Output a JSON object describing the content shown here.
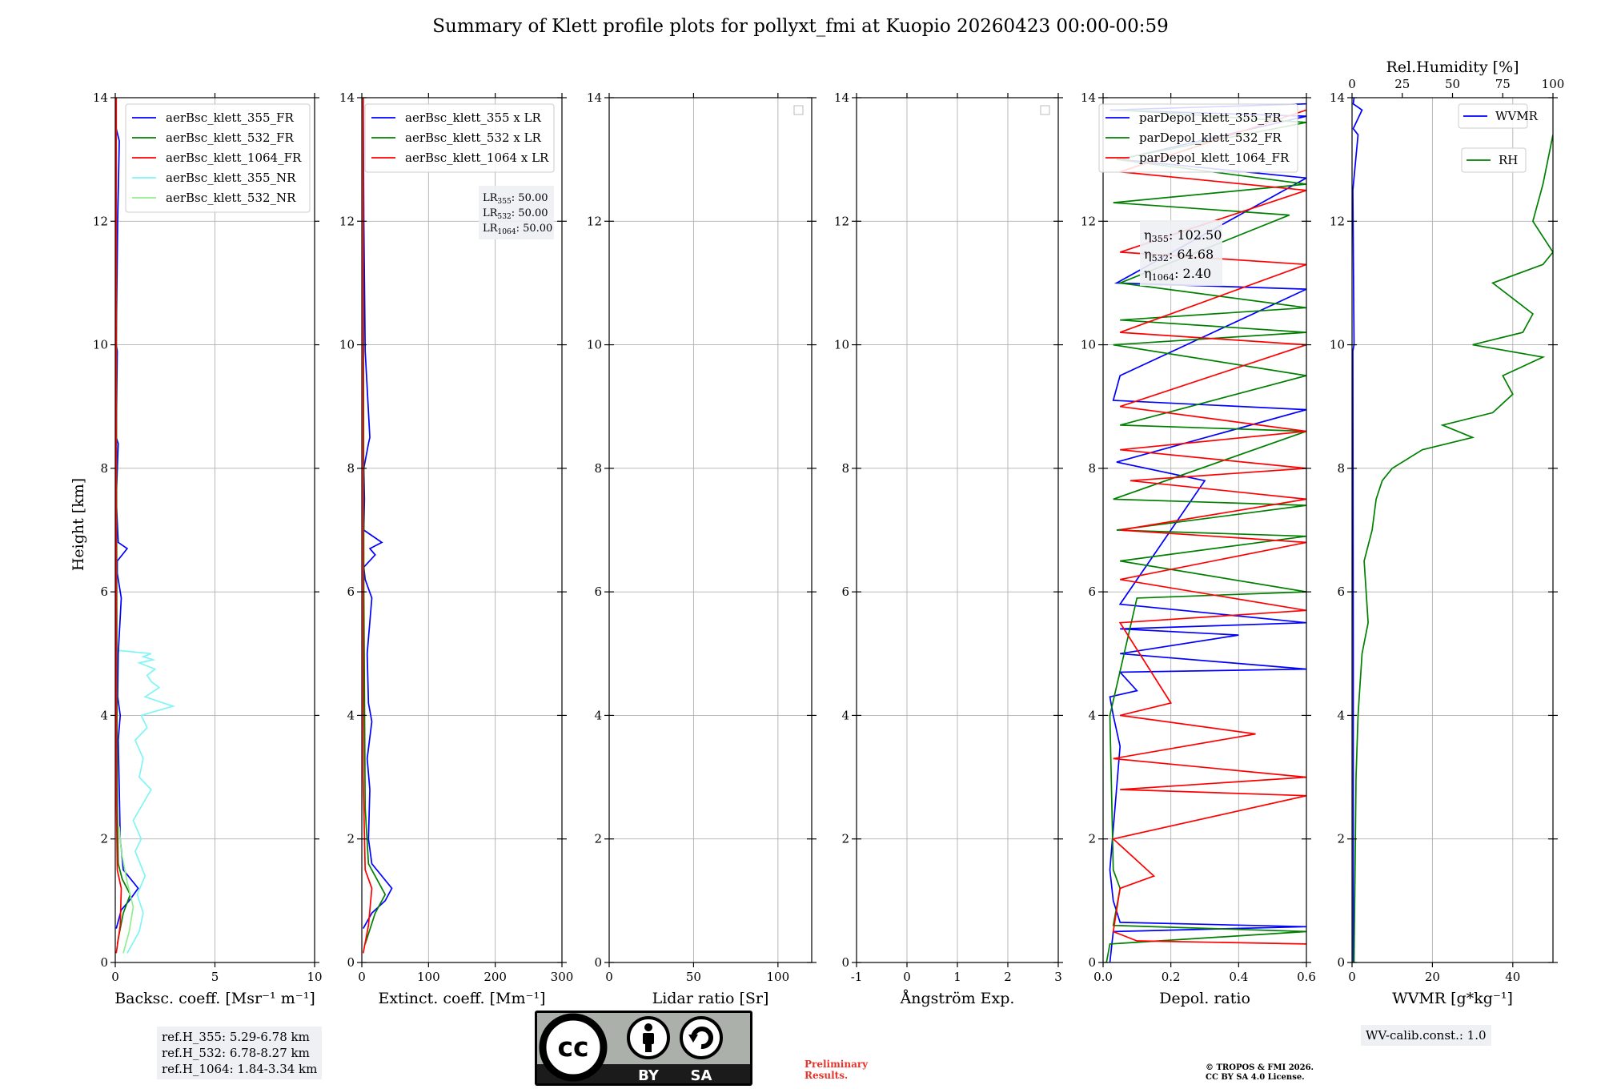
{
  "title": "Summary of Klett profile plots for pollyxt_fmi at Kuopio 20260423 00:00-00:59",
  "ylabel": "Height [km]",
  "ylim": [
    0,
    14
  ],
  "yticks": [
    0,
    2,
    4,
    6,
    8,
    10,
    12,
    14
  ],
  "ref_heights": [
    "ref.H_355: 5.29-6.78 km",
    "ref.H_532: 6.78-8.27 km",
    "ref.H_1064: 1.84-3.34 km"
  ],
  "wv_calib": "WV-calib.const.: 1.0",
  "preliminary": [
    "Preliminary",
    "Results."
  ],
  "copyright": [
    "© TROPOS & FMI 2026.",
    "CC BY SA 4.0 License."
  ],
  "license_badge": {
    "labels": [
      "BY",
      "SA"
    ],
    "icons": [
      "cc-icon",
      "person-icon",
      "share-alike-icon"
    ]
  },
  "colors": {
    "blue": "#0000ff",
    "green": "#008000",
    "red": "#ff0000",
    "cyan": "#7ff5f5",
    "lightgreen": "#90ee90",
    "box": "#eef0f4"
  },
  "chart_data": [
    {
      "type": "line",
      "xlabel": "Backsc. coeff. [Msr⁻¹ m⁻¹]",
      "xlim": [
        0,
        10
      ],
      "xticks": [
        0,
        5,
        10
      ],
      "legend": [
        "aerBsc_klett_355_FR",
        "aerBsc_klett_532_FR",
        "aerBsc_klett_1064_FR",
        "aerBsc_klett_355_NR",
        "aerBsc_klett_532_NR"
      ],
      "series": [
        {
          "name": "aerBsc_klett_355_FR",
          "color": "blue",
          "x": [
            0.05,
            0.3,
            0.7,
            1.15,
            0.4,
            0.25,
            0.2,
            0.15,
            0.25,
            0.12,
            0.15,
            0.3,
            0.1,
            0.1,
            0.35,
            0.6,
            0.15,
            0.05,
            0.15,
            0.05,
            0.1,
            0.05,
            0.12,
            0.2,
            0.05,
            0.05
          ],
          "y": [
            0.55,
            0.85,
            1.0,
            1.2,
            1.5,
            2.0,
            2.8,
            3.6,
            4.0,
            4.3,
            5.0,
            5.9,
            6.3,
            6.5,
            6.6,
            6.7,
            6.8,
            7.5,
            8.4,
            8.5,
            9.9,
            10.0,
            12.0,
            13.3,
            13.5,
            14.0
          ]
        },
        {
          "name": "aerBsc_klett_532_FR",
          "color": "green",
          "x": [
            0.1,
            0.4,
            0.75,
            0.35,
            0.15,
            0.1,
            0.08,
            0.06,
            0.05
          ],
          "y": [
            0.3,
            0.8,
            1.1,
            1.35,
            1.6,
            2.5,
            5.0,
            9.0,
            14.0
          ]
        },
        {
          "name": "aerBsc_klett_1064_FR",
          "color": "red",
          "x": [
            0.05,
            0.25,
            0.3,
            0.1,
            0.06,
            0.05,
            0.05
          ],
          "y": [
            0.15,
            0.6,
            1.2,
            1.5,
            2.5,
            8.0,
            14.0
          ]
        },
        {
          "name": "aerBsc_klett_355_NR",
          "color": "cyan",
          "x": [
            0.6,
            1.2,
            1.4,
            1.1,
            1.5,
            1.0,
            1.3,
            0.9,
            1.8,
            1.2,
            1.4,
            1.0,
            1.6,
            1.3,
            2.9,
            1.5,
            2.2,
            1.8,
            1.6,
            2.0,
            1.2,
            1.9,
            1.4,
            1.8,
            0.2
          ],
          "y": [
            0.15,
            0.5,
            0.8,
            1.1,
            1.4,
            1.8,
            2.0,
            2.3,
            2.8,
            3.0,
            3.3,
            3.6,
            3.8,
            4.0,
            4.15,
            4.3,
            4.45,
            4.55,
            4.65,
            4.75,
            4.85,
            4.9,
            4.95,
            5.0,
            5.05
          ]
        },
        {
          "name": "aerBsc_klett_532_NR",
          "color": "lightgreen",
          "x": [
            0.4,
            0.7,
            0.9,
            0.6,
            0.3,
            0.2
          ],
          "y": [
            0.15,
            0.5,
            0.9,
            1.3,
            1.8,
            2.2
          ]
        }
      ]
    },
    {
      "type": "line",
      "xlabel": "Extinct. coeff. [Mm⁻¹]",
      "xlim": [
        0,
        300
      ],
      "xticks": [
        0,
        100,
        200,
        300
      ],
      "legend": [
        "aerBsc_klett_355 x LR",
        "aerBsc_klett_532 x LR",
        "aerBsc_klett_1064 x LR"
      ],
      "info": [
        "LR355: 50.00",
        "LR532: 50.00",
        "LR1064: 50.00"
      ],
      "series": [
        {
          "name": "aerBsc_klett_355 x LR",
          "color": "blue",
          "x": [
            2,
            15,
            35,
            45,
            30,
            15,
            10,
            12,
            8,
            15,
            10,
            8,
            15,
            5,
            3,
            20,
            12,
            30,
            3,
            4,
            3,
            10,
            12,
            5,
            3,
            2
          ],
          "y": [
            0.55,
            0.8,
            1.0,
            1.2,
            1.4,
            1.6,
            2.0,
            2.8,
            3.3,
            3.9,
            4.2,
            5.0,
            5.9,
            6.2,
            6.4,
            6.6,
            6.7,
            6.8,
            7.0,
            7.5,
            8.0,
            8.4,
            8.5,
            9.9,
            12.0,
            14.0
          ]
        },
        {
          "name": "aerBsc_klett_532 x LR",
          "color": "green",
          "x": [
            5,
            20,
            35,
            25,
            10,
            5,
            3,
            2
          ],
          "y": [
            0.3,
            0.8,
            1.1,
            1.3,
            1.6,
            2.5,
            6.0,
            14.0
          ]
        },
        {
          "name": "aerBsc_klett_1064 x LR",
          "color": "red",
          "x": [
            2,
            10,
            15,
            5,
            2,
            2
          ],
          "y": [
            0.15,
            0.6,
            1.2,
            1.5,
            3.0,
            14.0
          ]
        }
      ]
    },
    {
      "type": "line",
      "xlabel": "Lidar ratio [Sr]",
      "xlim": [
        0,
        120
      ],
      "xticks": [
        0,
        50,
        100
      ],
      "legend": [],
      "series": []
    },
    {
      "type": "line",
      "xlabel": "Ångström Exp.",
      "xlim": [
        -1,
        3
      ],
      "xticks": [
        -1,
        0,
        1,
        2,
        3
      ],
      "legend": [],
      "series": []
    },
    {
      "type": "line",
      "xlabel": "Depol. ratio",
      "xlim": [
        0,
        0.6
      ],
      "xticks": [
        0.0,
        0.2,
        0.4,
        0.6
      ],
      "legend": [
        "parDepol_klett_355_FR",
        "parDepol_klett_532_FR",
        "parDepol_klett_1064_FR"
      ],
      "info": [
        "η355: 102.50",
        "η532: 64.68",
        "η1064: 2.40"
      ],
      "series": [
        {
          "name": "parDepol_klett_355_FR",
          "color": "blue",
          "x": [
            0.02,
            0.03,
            0.6,
            0.05,
            0.03,
            0.02,
            0.05,
            0.03,
            0.02,
            0.1,
            0.05,
            0.6,
            0.05,
            0.4,
            0.05,
            0.6,
            0.05,
            0.3,
            0.04,
            0.6,
            0.03,
            0.05,
            0.6,
            0.04,
            0.6,
            0.05,
            0.6,
            0.02,
            0.6
          ],
          "y": [
            0.0,
            0.5,
            0.58,
            0.65,
            1.0,
            1.5,
            3.5,
            4.0,
            4.3,
            4.4,
            4.7,
            4.75,
            5.0,
            5.3,
            5.4,
            5.5,
            5.8,
            7.8,
            8.1,
            8.95,
            9.1,
            9.5,
            10.9,
            11.0,
            12.7,
            13.0,
            13.7,
            13.8,
            13.9
          ]
        },
        {
          "name": "parDepol_klett_532_FR",
          "color": "green",
          "x": [
            0.01,
            0.02,
            0.6,
            0.03,
            0.05,
            0.03,
            0.02,
            0.1,
            0.6,
            0.05,
            0.6,
            0.04,
            0.6,
            0.03,
            0.6,
            0.05,
            0.6,
            0.03,
            0.6,
            0.05,
            0.6,
            0.05,
            0.55,
            0.03,
            0.6,
            0.04,
            0.6,
            0.05
          ],
          "y": [
            0.0,
            0.3,
            0.5,
            0.6,
            1.2,
            1.5,
            4.0,
            5.9,
            6.0,
            6.5,
            6.9,
            7.0,
            7.4,
            7.5,
            8.6,
            8.7,
            9.5,
            10.0,
            10.2,
            10.4,
            10.6,
            11.0,
            12.1,
            12.3,
            12.6,
            13.0,
            13.6,
            13.8
          ]
        },
        {
          "name": "parDepol_klett_1064_FR",
          "color": "red",
          "x": [
            0.6,
            0.1,
            0.03,
            0.05,
            0.15,
            0.03,
            0.6,
            0.05,
            0.6,
            0.03,
            0.45,
            0.05,
            0.2,
            0.05,
            0.6,
            0.05,
            0.6,
            0.05,
            0.6,
            0.08,
            0.6,
            0.05,
            0.6,
            0.05,
            0.6,
            0.05,
            0.6,
            0.05,
            0.6,
            0.05,
            0.6
          ],
          "y": [
            0.3,
            0.35,
            0.5,
            1.2,
            1.4,
            2.0,
            2.7,
            2.8,
            3.0,
            3.3,
            3.7,
            4.0,
            4.2,
            5.5,
            5.7,
            6.2,
            6.8,
            7.0,
            7.5,
            7.8,
            8.0,
            8.3,
            8.6,
            9.0,
            10.0,
            10.2,
            11.3,
            11.5,
            12.5,
            12.8,
            13.8
          ]
        }
      ]
    },
    {
      "type": "line",
      "xlabel": "WVMR [g*kg⁻¹]",
      "x2label": "Rel.Humidity [%]",
      "xlim": [
        0,
        50
      ],
      "xticks": [
        0,
        20,
        40
      ],
      "x2lim": [
        0,
        100
      ],
      "x2ticks": [
        0,
        25,
        50,
        75,
        100
      ],
      "legend": [
        "WVMR",
        "RH"
      ],
      "series": [
        {
          "name": "WVMR",
          "color": "blue",
          "axis": "bottom",
          "x": [
            0.3,
            0.3,
            0.2,
            0.5,
            0.2,
            1.5,
            0.3,
            2.5,
            0.3,
            0.5
          ],
          "y": [
            0.0,
            5.0,
            9.9,
            10.0,
            12.5,
            13.4,
            13.5,
            13.8,
            13.9,
            14.0
          ]
        },
        {
          "name": "RH",
          "color": "green",
          "axis": "top",
          "x": [
            1,
            2,
            3,
            5,
            8,
            7,
            6,
            10,
            12,
            15,
            20,
            35,
            60,
            45,
            70,
            80,
            75,
            95,
            60,
            85,
            90,
            70,
            95,
            100,
            90,
            95,
            100
          ],
          "y": [
            0.0,
            3.0,
            4.0,
            5.0,
            5.5,
            6.0,
            6.5,
            7.0,
            7.5,
            7.8,
            8.0,
            8.3,
            8.5,
            8.7,
            8.9,
            9.2,
            9.5,
            9.8,
            10.0,
            10.2,
            10.5,
            11.0,
            11.3,
            11.5,
            12.0,
            12.6,
            13.4
          ]
        }
      ]
    }
  ]
}
